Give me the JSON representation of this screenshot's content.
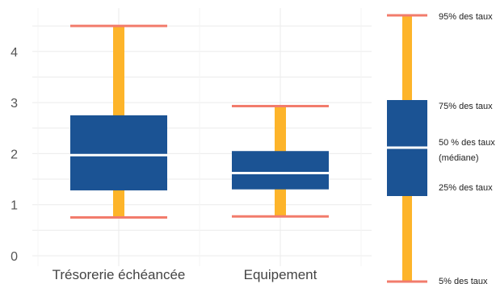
{
  "chart_data": {
    "type": "boxplot",
    "categories": [
      "Trésorerie échéancée",
      "Equipement"
    ],
    "boxes": [
      {
        "p5": 0.75,
        "q1": 1.28,
        "median": 1.97,
        "q3": 2.75,
        "p95": 4.5
      },
      {
        "p5": 0.77,
        "q1": 1.3,
        "median": 1.62,
        "q3": 2.05,
        "p95": 2.93
      }
    ],
    "ylim": [
      -0.1,
      4.75
    ],
    "yticks": [
      0,
      1,
      2,
      3,
      4
    ],
    "grid": true,
    "legend": {
      "position": "right",
      "items": [
        {
          "key": "p95",
          "label": "95% des taux"
        },
        {
          "key": "q3",
          "label": "75% des taux"
        },
        {
          "key": "median",
          "label": "50 % des taux",
          "label2": "(médiane)"
        },
        {
          "key": "q1",
          "label": "25% des taux"
        },
        {
          "key": "p5",
          "label": "5% des taux"
        }
      ]
    },
    "colors": {
      "box": "#1b5394",
      "whisker": "#fdb42a",
      "cap": "#f27c6c",
      "median": "#ffffff",
      "grid": "#ebebeb"
    }
  }
}
